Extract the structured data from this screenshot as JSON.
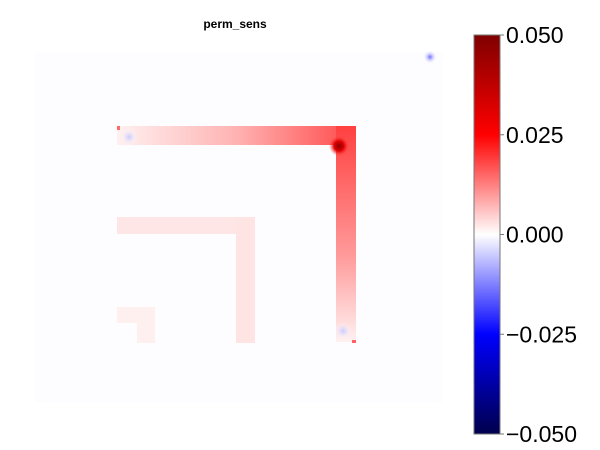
{
  "chart_data": {
    "type": "heatmap",
    "title": "perm_sens",
    "colormap": [
      "#00004c",
      "#0000ff",
      "#ffffff",
      "#ff0000",
      "#7f0000"
    ],
    "clim": [
      -0.05,
      0.05
    ],
    "colorbar": {
      "ticks": [
        0.05,
        0.025,
        0.0,
        -0.025,
        -0.05
      ],
      "tick_labels": [
        "0.050",
        "0.025",
        "0.000",
        "−0.025",
        "−0.050"
      ]
    },
    "axes_visible": false,
    "grid": false
  }
}
